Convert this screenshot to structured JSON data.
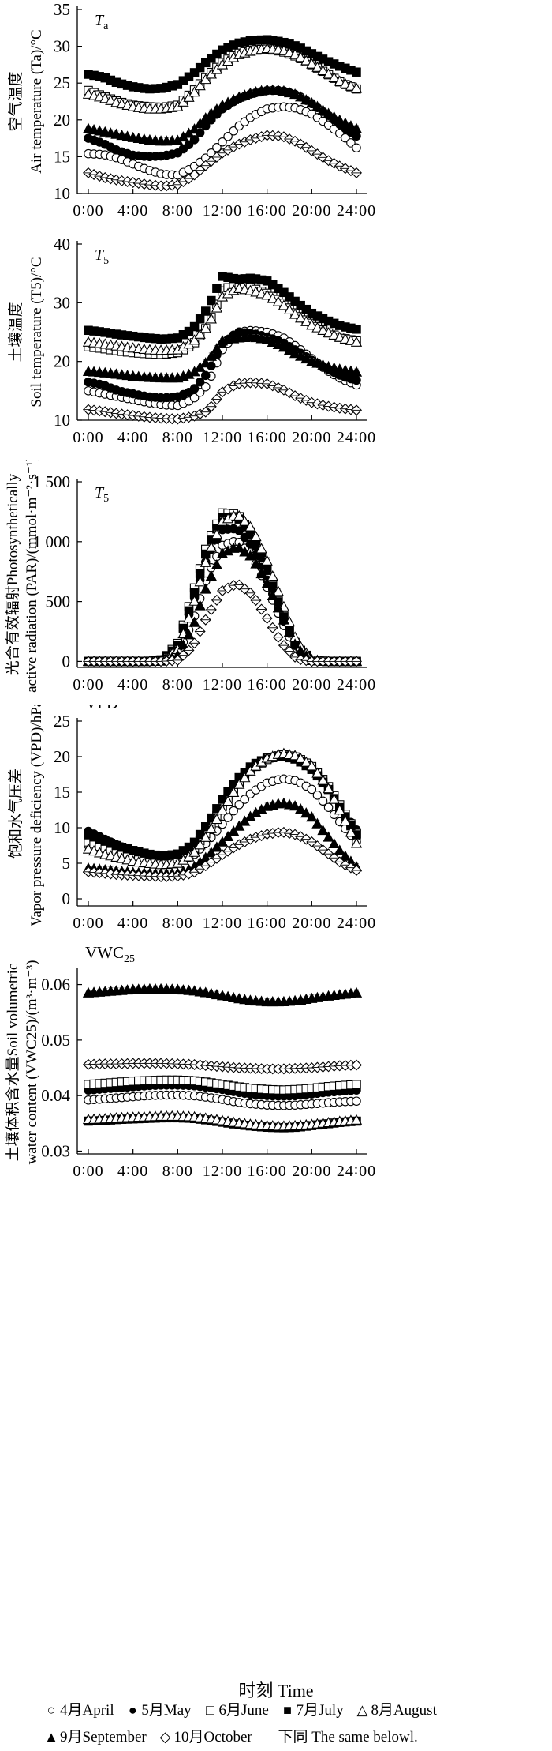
{
  "x_title": "时刻  Time",
  "legend": [
    {
      "label": "4月April",
      "symbol": "○",
      "marker": "circle",
      "fill": "open"
    },
    {
      "label": "5月May",
      "symbol": "●",
      "marker": "circle",
      "fill": "filled"
    },
    {
      "label": "6月June",
      "symbol": "□",
      "marker": "square",
      "fill": "open"
    },
    {
      "label": "7月July",
      "symbol": "■",
      "marker": "square",
      "fill": "filled"
    },
    {
      "label": "8月August",
      "symbol": "△",
      "marker": "triangle",
      "fill": "open"
    },
    {
      "label": "9月September",
      "symbol": "▲",
      "marker": "triangle",
      "fill": "filled"
    },
    {
      "label": "10月October",
      "symbol": "◇",
      "marker": "diamond",
      "fill": "open"
    }
  ],
  "legend_note": "下同  The same belowl.",
  "chart_data": [
    {
      "type": "line",
      "panel_label": "T",
      "panel_label_sub": "a",
      "ylabel_cn": "空气温度",
      "ylabel_en": "Air temperature (Ta)/°C",
      "ylim": [
        10,
        35
      ],
      "yticks": [
        10,
        15,
        20,
        25,
        30,
        35
      ],
      "xticks": [
        "0:00",
        "4:00",
        "8:00",
        "12:00",
        "16:00",
        "20:00",
        "24:00"
      ],
      "grid": false,
      "series": [
        {
          "name": "4月April",
          "curve": [
            15.4,
            15.3,
            14.8,
            14.0,
            13.2,
            12.6,
            12.5,
            13.5,
            15.0,
            17.0,
            19.0,
            20.5,
            21.5,
            21.8,
            21.6,
            20.8,
            19.5,
            18.0,
            16.2
          ]
        },
        {
          "name": "5月May",
          "curve": [
            17.5,
            16.8,
            15.8,
            15.2,
            15.0,
            15.1,
            15.5,
            17.0,
            19.5,
            21.5,
            22.8,
            23.6,
            24.0,
            24.0,
            23.4,
            22.2,
            20.8,
            19.2,
            17.8
          ]
        },
        {
          "name": "6月June",
          "curve": [
            24.0,
            23.2,
            22.5,
            22.0,
            21.8,
            21.7,
            22.0,
            23.8,
            26.0,
            27.8,
            29.0,
            29.5,
            29.6,
            29.3,
            28.6,
            27.5,
            26.3,
            25.0,
            24.2
          ]
        },
        {
          "name": "7月July",
          "curve": [
            26.2,
            25.8,
            25.0,
            24.5,
            24.2,
            24.3,
            24.8,
            26.2,
            28.0,
            29.5,
            30.4,
            30.8,
            30.9,
            30.6,
            30.0,
            29.0,
            28.0,
            27.2,
            26.5
          ]
        },
        {
          "name": "8月August",
          "curve": [
            23.5,
            23.0,
            22.3,
            21.8,
            21.5,
            21.5,
            21.8,
            23.5,
            25.8,
            27.5,
            28.8,
            29.4,
            29.7,
            29.5,
            28.8,
            27.6,
            26.4,
            25.1,
            24.3
          ]
        },
        {
          "name": "9月September",
          "curve": [
            18.8,
            18.4,
            18.0,
            17.6,
            17.3,
            17.1,
            17.2,
            18.5,
            20.5,
            22.0,
            23.0,
            23.7,
            24.1,
            24.0,
            23.4,
            22.3,
            21.0,
            19.8,
            18.8
          ]
        },
        {
          "name": "10月October",
          "curve": [
            12.8,
            12.2,
            11.8,
            11.5,
            11.2,
            11.0,
            11.2,
            12.3,
            14.0,
            15.5,
            16.6,
            17.4,
            17.9,
            17.8,
            17.0,
            15.8,
            14.6,
            13.6,
            12.8
          ]
        }
      ]
    },
    {
      "type": "line",
      "panel_label": "T",
      "panel_label_sub": "5",
      "ylabel_cn": "土壤温度",
      "ylabel_en": "Soil temperature (T5)/°C",
      "ylim": [
        10,
        40
      ],
      "yticks": [
        10,
        20,
        30,
        40
      ],
      "xticks": [
        "0:00",
        "4:00",
        "8:00",
        "12:00",
        "16:00",
        "20:00",
        "24:00"
      ],
      "grid": false,
      "series": [
        {
          "name": "4月April",
          "curve": [
            15.0,
            14.5,
            14.0,
            13.5,
            13.0,
            12.6,
            12.5,
            13.5,
            16.0,
            22.0,
            25.0,
            25.3,
            25.0,
            24.2,
            22.5,
            20.5,
            18.5,
            17.0,
            16.0
          ]
        },
        {
          "name": "5月May",
          "curve": [
            16.5,
            16.0,
            15.0,
            14.5,
            14.0,
            13.8,
            14.0,
            15.0,
            18.0,
            23.0,
            25.0,
            24.8,
            24.2,
            23.3,
            21.8,
            20.2,
            18.8,
            17.5,
            16.8
          ]
        },
        {
          "name": "6月June",
          "curve": [
            22.5,
            22.2,
            21.8,
            21.5,
            21.3,
            21.2,
            21.5,
            22.8,
            26.0,
            32.0,
            33.5,
            32.5,
            31.6,
            30.2,
            28.0,
            26.5,
            25.0,
            24.0,
            23.5
          ]
        },
        {
          "name": "7月July",
          "curve": [
            25.3,
            25.0,
            24.6,
            24.3,
            24.0,
            23.8,
            24.0,
            25.5,
            29.0,
            34.5,
            34.0,
            34.2,
            33.7,
            32.0,
            30.0,
            28.2,
            27.0,
            26.0,
            25.5
          ]
        },
        {
          "name": "8月August",
          "curve": [
            23.3,
            23.0,
            22.6,
            22.3,
            22.0,
            21.9,
            22.0,
            23.3,
            26.0,
            31.0,
            32.5,
            32.0,
            31.3,
            29.8,
            27.8,
            26.2,
            25.0,
            24.0,
            23.3
          ]
        },
        {
          "name": "9月September",
          "curve": [
            18.3,
            18.1,
            17.8,
            17.5,
            17.3,
            17.2,
            17.2,
            18.0,
            20.0,
            23.5,
            24.0,
            24.2,
            23.7,
            22.6,
            21.2,
            20.0,
            19.2,
            18.6,
            18.2
          ]
        },
        {
          "name": "10月October",
          "curve": [
            11.8,
            11.5,
            11.1,
            10.8,
            10.5,
            10.3,
            10.2,
            10.6,
            11.5,
            14.8,
            16.2,
            16.4,
            16.2,
            15.3,
            14.0,
            13.0,
            12.4,
            12.0,
            11.7
          ]
        }
      ]
    },
    {
      "type": "line",
      "panel_label": "T",
      "panel_label_sub": "5",
      "ylabel_cn": "光合有效辐射",
      "ylabel_en_line1": "Photosynthetically",
      "ylabel_en_line2": "active radiation (PAR)/(mmol·m⁻²·s⁻¹)",
      "ylim": [
        -50,
        1500
      ],
      "yticks": [
        0,
        500,
        1000,
        1500
      ],
      "ytick_labels": [
        "0",
        "500",
        "1 000",
        "1 500"
      ],
      "xticks": [
        "0:00",
        "4:00",
        "8:00",
        "12:00",
        "16:00",
        "20:00",
        "24:00"
      ],
      "grid": false,
      "series": [
        {
          "name": "4月April",
          "curve": [
            0,
            0,
            0,
            0,
            0,
            5,
            60,
            330,
            720,
            970,
            1010,
            880,
            620,
            330,
            80,
            5,
            0,
            0,
            0
          ]
        },
        {
          "name": "5月May",
          "curve": [
            0,
            0,
            0,
            0,
            0,
            10,
            120,
            480,
            880,
            1100,
            1110,
            960,
            680,
            370,
            100,
            8,
            0,
            0,
            0
          ]
        },
        {
          "name": "6月June",
          "curve": [
            0,
            0,
            0,
            0,
            0,
            15,
            150,
            560,
            990,
            1240,
            1230,
            1060,
            770,
            420,
            120,
            10,
            0,
            0,
            0
          ]
        },
        {
          "name": "7月July",
          "curve": [
            0,
            0,
            0,
            0,
            0,
            12,
            130,
            520,
            950,
            1200,
            1210,
            1040,
            760,
            410,
            110,
            9,
            0,
            0,
            0
          ]
        },
        {
          "name": "8月August",
          "curve": [
            0,
            0,
            0,
            0,
            0,
            8,
            100,
            450,
            880,
            1170,
            1230,
            1110,
            840,
            500,
            160,
            15,
            0,
            0,
            0
          ]
        },
        {
          "name": "9月September",
          "curve": [
            0,
            0,
            0,
            0,
            0,
            3,
            50,
            280,
            650,
            900,
            960,
            870,
            650,
            380,
            110,
            8,
            0,
            0,
            0
          ]
        },
        {
          "name": "10月October",
          "curve": [
            0,
            0,
            0,
            0,
            0,
            0,
            10,
            120,
            380,
            590,
            650,
            560,
            360,
            150,
            20,
            0,
            0,
            0,
            0
          ]
        }
      ]
    },
    {
      "type": "line",
      "panel_label": "VPD",
      "panel_label_sub": "",
      "ylabel_cn": "饱和水气压差",
      "ylabel_en": "Vapor pressure deficiency (VPD)/hPa",
      "ylim": [
        -1,
        25
      ],
      "yticks": [
        0,
        5,
        10,
        15,
        20,
        25
      ],
      "xticks": [
        "0:00",
        "4:00",
        "8:00",
        "12:00",
        "16:00",
        "20:00",
        "24:00"
      ],
      "grid": false,
      "series": [
        {
          "name": "4月April",
          "curve": [
            7.5,
            6.8,
            6.0,
            5.5,
            5.2,
            5.0,
            5.2,
            6.0,
            8.0,
            10.5,
            13.0,
            15.0,
            16.3,
            16.9,
            16.6,
            15.4,
            13.2,
            10.5,
            8.0
          ]
        },
        {
          "name": "5月May",
          "curve": [
            9.5,
            8.5,
            7.5,
            6.8,
            6.2,
            6.0,
            6.2,
            7.5,
            10.0,
            13.0,
            16.0,
            18.3,
            19.6,
            20.2,
            19.8,
            18.5,
            16.0,
            12.5,
            9.7
          ]
        },
        {
          "name": "6月June",
          "curve": [
            8.0,
            7.2,
            6.5,
            6.0,
            5.6,
            5.3,
            5.5,
            6.8,
            9.5,
            13.0,
            16.0,
            18.3,
            19.6,
            20.3,
            19.9,
            18.6,
            16.2,
            12.8,
            9.2
          ]
        },
        {
          "name": "7月July",
          "curve": [
            9.0,
            8.2,
            7.4,
            6.8,
            6.3,
            6.0,
            6.3,
            7.6,
            10.5,
            14.0,
            16.8,
            18.8,
            19.8,
            20.1,
            19.6,
            18.2,
            15.8,
            12.4,
            9.0
          ]
        },
        {
          "name": "8月August",
          "curve": [
            7.0,
            6.3,
            5.8,
            5.3,
            5.0,
            4.8,
            5.0,
            6.2,
            9.0,
            12.5,
            15.8,
            18.3,
            19.8,
            20.5,
            20.1,
            18.7,
            16.0,
            12.0,
            7.8
          ]
        },
        {
          "name": "9月September",
          "curve": [
            4.3,
            4.1,
            3.9,
            3.7,
            3.6,
            3.5,
            3.6,
            4.3,
            6.0,
            8.0,
            10.0,
            11.8,
            13.0,
            13.5,
            13.0,
            11.5,
            9.0,
            6.5,
            4.5
          ]
        },
        {
          "name": "10月October",
          "curve": [
            3.8,
            3.6,
            3.4,
            3.3,
            3.2,
            3.1,
            3.2,
            3.6,
            4.8,
            6.2,
            7.5,
            8.5,
            9.1,
            9.4,
            9.0,
            8.0,
            6.5,
            5.0,
            4.0
          ]
        }
      ]
    },
    {
      "type": "line",
      "panel_label": "VWC",
      "panel_label_sub": "25",
      "ylabel_cn": "土壤体积含水量",
      "ylabel_en_line1": "Soil volumetric",
      "ylabel_en_line2": "water content (VWC25)/(m³·m⁻³)",
      "ylim": [
        0.0295,
        0.0625
      ],
      "yticks": [
        0.03,
        0.04,
        0.05,
        0.06
      ],
      "ytick_labels": [
        "0.03",
        "0.04",
        "0.05",
        "0.06"
      ],
      "xticks": [
        "0:00",
        "4:00",
        "8:00",
        "12:00",
        "16:00",
        "20:00",
        "24:00"
      ],
      "grid": false,
      "series": [
        {
          "name": "4月April",
          "curve": [
            0.0392,
            0.0394,
            0.0396,
            0.0398,
            0.04,
            0.0401,
            0.0401,
            0.04,
            0.0397,
            0.0393,
            0.0388,
            0.0385,
            0.0383,
            0.0382,
            0.0383,
            0.0385,
            0.0387,
            0.0389,
            0.039
          ]
        },
        {
          "name": "5月May",
          "curve": [
            0.041,
            0.0412,
            0.0414,
            0.0416,
            0.0418,
            0.0419,
            0.0419,
            0.0418,
            0.0415,
            0.0411,
            0.0406,
            0.0402,
            0.04,
            0.0399,
            0.04,
            0.0403,
            0.0406,
            0.0408,
            0.041
          ]
        },
        {
          "name": "6月June",
          "curve": [
            0.042,
            0.0422,
            0.0424,
            0.0426,
            0.0427,
            0.0428,
            0.0428,
            0.0427,
            0.0424,
            0.042,
            0.0416,
            0.0413,
            0.0411,
            0.041,
            0.0411,
            0.0413,
            0.0416,
            0.0418,
            0.042
          ]
        },
        {
          "name": "7月July",
          "curve": [
            0.0354,
            0.0355,
            0.0357,
            0.0358,
            0.0359,
            0.036,
            0.036,
            0.0359,
            0.0356,
            0.0352,
            0.0348,
            0.0345,
            0.0343,
            0.0342,
            0.0343,
            0.0346,
            0.0349,
            0.0352,
            0.0354
          ]
        },
        {
          "name": "8月August",
          "curve": [
            0.0357,
            0.0358,
            0.036,
            0.0361,
            0.0362,
            0.0363,
            0.0363,
            0.0362,
            0.0359,
            0.0355,
            0.0351,
            0.0348,
            0.0346,
            0.0345,
            0.0346,
            0.0348,
            0.0351,
            0.0354,
            0.0356
          ]
        },
        {
          "name": "9月September",
          "curve": [
            0.0585,
            0.0587,
            0.0589,
            0.0591,
            0.0592,
            0.0592,
            0.0591,
            0.0589,
            0.0585,
            0.058,
            0.0575,
            0.0571,
            0.0569,
            0.0569,
            0.0571,
            0.0575,
            0.0579,
            0.0582,
            0.0585
          ]
        },
        {
          "name": "10月October",
          "curve": [
            0.0456,
            0.0457,
            0.0457,
            0.0458,
            0.0458,
            0.0458,
            0.0457,
            0.0456,
            0.0454,
            0.0452,
            0.045,
            0.0449,
            0.0448,
            0.0448,
            0.0449,
            0.045,
            0.0452,
            0.0454,
            0.0455
          ]
        }
      ]
    }
  ]
}
